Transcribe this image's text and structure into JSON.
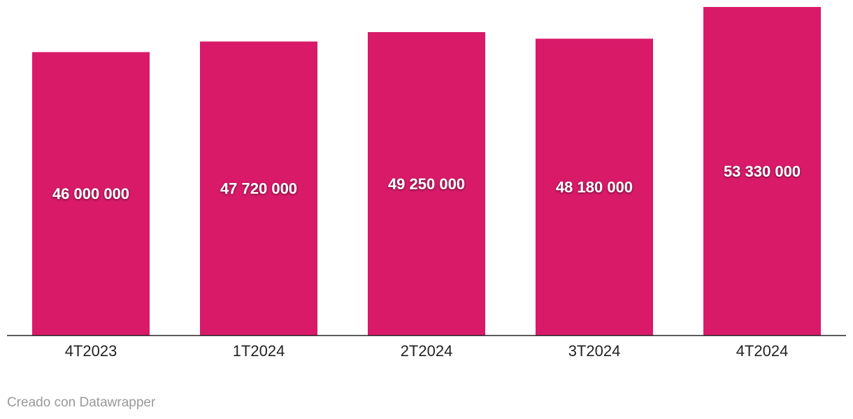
{
  "chart_data": {
    "type": "bar",
    "categories": [
      "4T2023",
      "1T2024",
      "2T2024",
      "3T2024",
      "4T2024"
    ],
    "values": [
      46000000,
      47720000,
      49250000,
      48180000,
      53330000
    ],
    "value_labels": [
      "46 000 000",
      "47 720 000",
      "49 250 000",
      "48 180 000",
      "53 330 000"
    ],
    "color": "#d81a69",
    "footer": "Creado con Datawrapper"
  }
}
